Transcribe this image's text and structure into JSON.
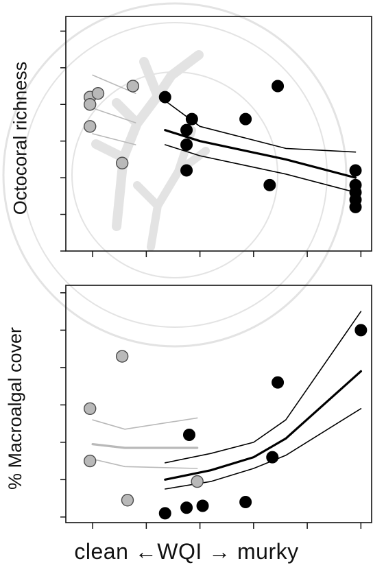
{
  "figure": {
    "x_axis_label": "clean ←WQI →  murky"
  },
  "chart_data": [
    {
      "type": "scatter",
      "ylabel": "Octocoral richness",
      "xlim": [
        0,
        11.4
      ],
      "ylim": [
        0,
        6.4
      ],
      "x_ticks": [
        1,
        3,
        5,
        7,
        9,
        11
      ],
      "y_ticks": [
        0,
        1,
        2,
        3,
        4,
        5,
        6
      ],
      "series": [
        {
          "marker": "grey",
          "color": "#b9b9b9",
          "points": [
            [
              0.9,
              4.2
            ],
            [
              0.9,
              4.0
            ],
            [
              0.9,
              3.4
            ],
            [
              2.1,
              2.4
            ],
            [
              2.5,
              4.5
            ],
            [
              1.2,
              4.3
            ]
          ]
        },
        {
          "marker": "black",
          "color": "#000000",
          "points": [
            [
              3.7,
              4.2
            ],
            [
              4.5,
              3.3
            ],
            [
              4.7,
              3.6
            ],
            [
              4.5,
              2.9
            ],
            [
              4.5,
              2.2
            ],
            [
              6.7,
              3.6
            ],
            [
              7.9,
              4.5
            ],
            [
              7.6,
              1.8
            ],
            [
              10.8,
              2.2
            ],
            [
              10.8,
              1.8
            ],
            [
              10.8,
              1.6
            ],
            [
              10.8,
              1.4
            ],
            [
              10.8,
              1.2
            ]
          ]
        }
      ],
      "lines": [
        {
          "weight": "thin",
          "color": "#b9b9b9",
          "points": [
            [
              1.0,
              4.8
            ],
            [
              2.6,
              4.3
            ]
          ]
        },
        {
          "weight": "thin",
          "color": "#b9b9b9",
          "points": [
            [
              1.0,
              3.9
            ],
            [
              2.6,
              3.5
            ]
          ]
        },
        {
          "weight": "thin",
          "color": "#b9b9b9",
          "points": [
            [
              1.0,
              3.2
            ],
            [
              2.6,
              2.9
            ]
          ]
        },
        {
          "weight": "thin",
          "color": "#000000",
          "points": [
            [
              3.7,
              4.1
            ],
            [
              5.0,
              3.4
            ],
            [
              8.2,
              2.8
            ],
            [
              10.8,
              2.7
            ]
          ]
        },
        {
          "weight": "thick",
          "color": "#000000",
          "points": [
            [
              3.7,
              3.3
            ],
            [
              5.0,
              3.0
            ],
            [
              8.2,
              2.5
            ],
            [
              10.8,
              2.0
            ]
          ]
        },
        {
          "weight": "thin",
          "color": "#000000",
          "points": [
            [
              3.7,
              2.9
            ],
            [
              5.0,
              2.6
            ],
            [
              8.2,
              2.1
            ],
            [
              10.8,
              1.6
            ]
          ]
        }
      ]
    },
    {
      "type": "scatter",
      "ylabel": "% Macroalgal cover",
      "xlim": [
        0,
        11.4
      ],
      "ylim": [
        -0.15,
        6.2
      ],
      "x_ticks": [
        1,
        3,
        5,
        7,
        9,
        11
      ],
      "y_ticks": [
        0,
        1,
        2,
        3,
        4,
        5,
        6
      ],
      "series": [
        {
          "marker": "grey",
          "color": "#b9b9b9",
          "points": [
            [
              0.9,
              2.9
            ],
            [
              2.1,
              4.3
            ],
            [
              0.9,
              1.5
            ],
            [
              2.3,
              0.45
            ],
            [
              4.9,
              0.95
            ]
          ]
        },
        {
          "marker": "black",
          "color": "#000000",
          "points": [
            [
              3.7,
              0.1
            ],
            [
              4.5,
              0.25
            ],
            [
              4.6,
              2.2
            ],
            [
              5.1,
              0.3
            ],
            [
              6.7,
              0.4
            ],
            [
              7.7,
              1.6
            ],
            [
              7.9,
              3.6
            ],
            [
              11.0,
              5.0
            ]
          ]
        }
      ],
      "lines": [
        {
          "weight": "thin",
          "color": "#b9b9b9",
          "points": [
            [
              1.0,
              2.6
            ],
            [
              2.2,
              2.35
            ],
            [
              4.9,
              2.65
            ]
          ]
        },
        {
          "weight": "thick",
          "color": "#b9b9b9",
          "points": [
            [
              1.0,
              1.95
            ],
            [
              2.2,
              1.85
            ],
            [
              4.9,
              1.85
            ]
          ]
        },
        {
          "weight": "thin",
          "color": "#b9b9b9",
          "points": [
            [
              1.0,
              1.55
            ],
            [
              2.2,
              1.35
            ],
            [
              4.9,
              1.3
            ]
          ]
        },
        {
          "weight": "thin",
          "color": "#000000",
          "points": [
            [
              3.7,
              1.45
            ],
            [
              5.4,
              1.7
            ],
            [
              7.0,
              2.0
            ],
            [
              8.2,
              2.6
            ],
            [
              11.0,
              5.5
            ]
          ]
        },
        {
          "weight": "thick",
          "color": "#000000",
          "points": [
            [
              3.7,
              1.0
            ],
            [
              5.4,
              1.25
            ],
            [
              7.0,
              1.6
            ],
            [
              8.2,
              2.1
            ],
            [
              11.0,
              3.9
            ]
          ]
        },
        {
          "weight": "thin",
          "color": "#000000",
          "points": [
            [
              3.7,
              0.75
            ],
            [
              5.4,
              0.95
            ],
            [
              7.0,
              1.3
            ],
            [
              8.2,
              1.65
            ],
            [
              11.0,
              2.9
            ]
          ]
        }
      ]
    }
  ]
}
